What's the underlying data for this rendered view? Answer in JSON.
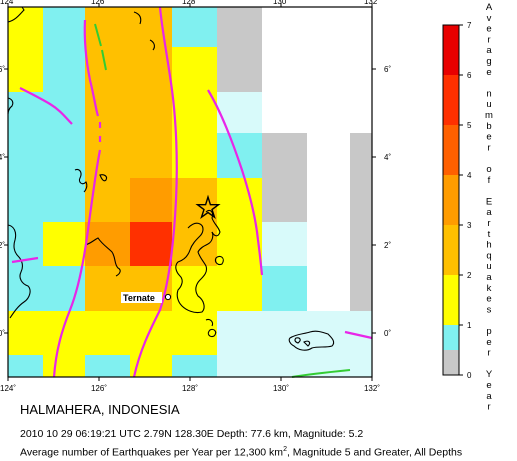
{
  "map": {
    "x_ticks": [
      "124˚",
      "126˚",
      "128˚",
      "130˚",
      "132˚"
    ],
    "y_ticks": [
      "0˚",
      "2˚",
      "4˚",
      "6˚"
    ],
    "city_label": "Ternate"
  },
  "legend": {
    "levels": [
      "0",
      "1",
      "2",
      "3",
      "4",
      "5",
      "6",
      "7"
    ],
    "title_chars": [
      "A",
      "v",
      "e",
      "r",
      "a",
      "g",
      "e",
      "",
      "n",
      "u",
      "m",
      "b",
      "e",
      "r",
      "",
      "o",
      "f",
      "",
      "E",
      "a",
      "r",
      "t",
      "h",
      "q",
      "u",
      "a",
      "k",
      "e",
      "s",
      "",
      "p",
      "e",
      "r",
      "",
      "Y",
      "e",
      "a",
      "r"
    ],
    "colors": {
      "no_data": "#c8c8c8",
      "0_1": "#80f0f0",
      "1_2": "#ffff00",
      "2_3": "#ffc000",
      "3_4": "#ff9c00",
      "4_5": "#ff6000",
      "5_6": "#ff3000",
      "6_7": "#e80000"
    }
  },
  "caption": {
    "title": "HALMAHERA, INDONESIA",
    "event_line": "2010 10 29 06:19:21 UTC 2.79N 128.30E Depth: 77.6 km, Magnitude: 5.2",
    "desc_before": "Average number of Earthquakes per Year per 12,300 km",
    "desc_sup": "2",
    "desc_after": ", Magnitude 5 and Greater, All Depths"
  }
}
